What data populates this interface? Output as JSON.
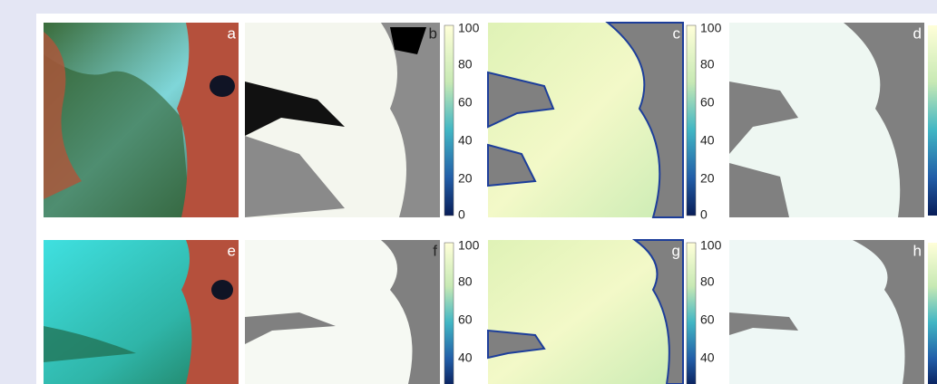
{
  "panels": [
    {
      "label": "a"
    },
    {
      "label": "b"
    },
    {
      "label": "c"
    },
    {
      "label": "d"
    },
    {
      "label": "e"
    },
    {
      "label": "f"
    },
    {
      "label": "g"
    },
    {
      "label": "h"
    }
  ],
  "colorbars": [
    {
      "ticks": [
        100,
        80,
        60,
        40,
        20,
        0
      ]
    },
    {
      "ticks": [
        100,
        80,
        60,
        40,
        20,
        0
      ]
    },
    {
      "ticks": [
        100,
        80,
        60,
        40
      ]
    },
    {
      "ticks": [
        100,
        80,
        60,
        40
      ]
    }
  ]
}
